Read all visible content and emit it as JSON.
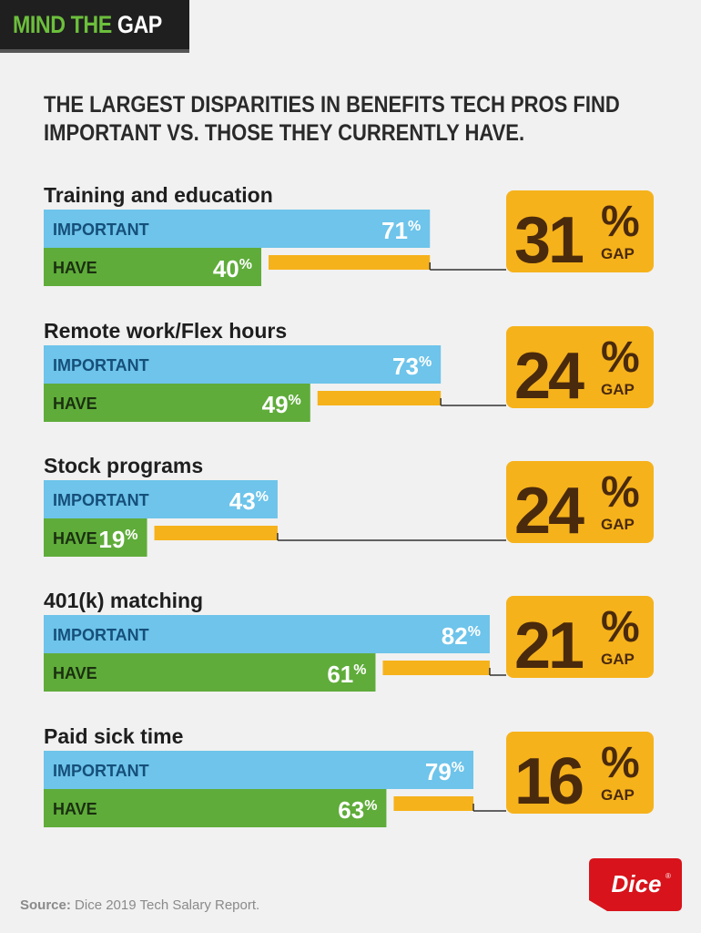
{
  "header": {
    "tab_word1": "MIND THE",
    "tab_word2": "GAP",
    "headline_line1": "THE LARGEST DISPARITIES IN BENEFITS TECH PROS FIND",
    "headline_line2": "IMPORTANT VS. THOSE THEY CURRENTLY HAVE."
  },
  "chart_data": {
    "type": "bar",
    "categories": [
      "Training and education",
      "Remote work/Flex hours",
      "Stock programs",
      "401(k) matching",
      "Paid sick time"
    ],
    "series": [
      {
        "name": "IMPORTANT",
        "values": [
          71,
          73,
          43,
          82,
          79
        ]
      },
      {
        "name": "HAVE",
        "values": [
          40,
          49,
          19,
          61,
          63
        ]
      }
    ],
    "gaps": [
      31,
      24,
      24,
      21,
      16
    ],
    "unit": "%",
    "gap_label": "GAP",
    "colors": {
      "important": "#6ec4ea",
      "have": "#5fac3a",
      "connector": "#f6b21b",
      "gap_box": "#f6b21b",
      "gap_text": "#4a2a0c"
    }
  },
  "footer": {
    "source_label": "Source:",
    "source_text": "Dice 2019 Tech Salary Report.",
    "logo_text": "Dice",
    "logo_mark": "®",
    "logo_color": "#d8131b"
  }
}
